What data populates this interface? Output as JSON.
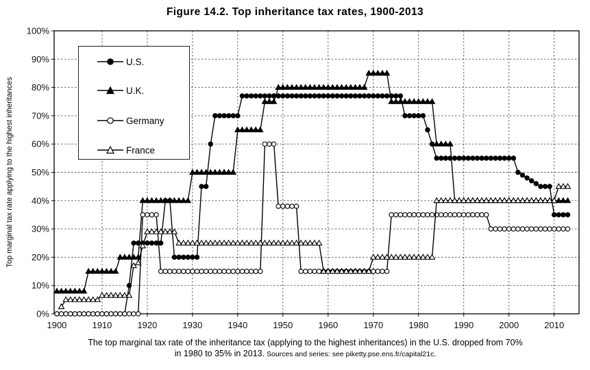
{
  "chart_data": {
    "type": "line",
    "title": "Figure 14.2. Top inheritance tax rates, 1900-2013",
    "ylabel": "Top marginal tax rate applying to the highest inheritances",
    "xlabel": "",
    "x_range": [
      1899.4,
      2015.5
    ],
    "y_range": [
      0,
      100
    ],
    "x_ticks": [
      1900,
      1910,
      1920,
      1930,
      1940,
      1950,
      1960,
      1970,
      1980,
      1990,
      2000,
      2010
    ],
    "x_tick_labels": [
      "1900",
      "1910",
      "1920",
      "1930",
      "1940",
      "1950",
      "1960",
      "1970",
      "1980",
      "1990",
      "2000",
      "2010"
    ],
    "y_ticks": [
      0,
      10,
      20,
      30,
      40,
      50,
      60,
      70,
      80,
      90,
      100
    ],
    "y_tick_labels": [
      "0%",
      "10%",
      "20%",
      "30%",
      "40%",
      "50%",
      "60%",
      "70%",
      "80%",
      "90%",
      "100%"
    ],
    "grid": "dashed-both-axes",
    "legend_position": "top-left",
    "colors": {
      "line": "#000000",
      "grid": "#555555",
      "background": "#ffffff"
    },
    "series": [
      {
        "name": "U.S.",
        "marker": "circle",
        "fill": "filled",
        "segments": [
          [
            1900,
            1915,
            0
          ],
          [
            1916,
            1916,
            10
          ],
          [
            1917,
            1923,
            25
          ],
          [
            1924,
            1925,
            40
          ],
          [
            1926,
            1931,
            20
          ],
          [
            1932,
            1933,
            45
          ],
          [
            1934,
            1934,
            60
          ],
          [
            1935,
            1940,
            70
          ],
          [
            1941,
            1976,
            77
          ],
          [
            1977,
            1981,
            70
          ],
          [
            1982,
            1982,
            65
          ],
          [
            1983,
            1983,
            60
          ],
          [
            1984,
            2001,
            55
          ],
          [
            2002,
            2002,
            50
          ],
          [
            2003,
            2003,
            49
          ],
          [
            2004,
            2004,
            48
          ],
          [
            2005,
            2005,
            47
          ],
          [
            2006,
            2006,
            46
          ],
          [
            2007,
            2009,
            45
          ],
          [
            2010,
            2013,
            35
          ]
        ]
      },
      {
        "name": "U.K.",
        "marker": "triangle",
        "fill": "filled",
        "segments": [
          [
            1900,
            1906,
            8
          ],
          [
            1907,
            1913,
            15
          ],
          [
            1914,
            1918,
            20
          ],
          [
            1919,
            1929,
            40
          ],
          [
            1930,
            1939,
            50
          ],
          [
            1940,
            1945,
            65
          ],
          [
            1946,
            1948,
            75
          ],
          [
            1949,
            1968,
            80
          ],
          [
            1969,
            1973,
            85
          ],
          [
            1974,
            1983,
            75
          ],
          [
            1984,
            1987,
            60
          ],
          [
            1988,
            2013,
            40
          ]
        ]
      },
      {
        "name": "Germany",
        "marker": "circle",
        "fill": "open",
        "segments": [
          [
            1900,
            1918,
            0
          ],
          [
            1919,
            1922,
            35
          ],
          [
            1923,
            1945,
            15
          ],
          [
            1946,
            1948,
            60
          ],
          [
            1949,
            1953,
            38
          ],
          [
            1954,
            1973,
            15
          ],
          [
            1974,
            1995,
            35
          ],
          [
            1996,
            2013,
            30
          ]
        ]
      },
      {
        "name": "France",
        "marker": "triangle",
        "fill": "open",
        "segments": [
          [
            1901,
            1901,
            2.5
          ],
          [
            1902,
            1909,
            5
          ],
          [
            1910,
            1916,
            6.5
          ],
          [
            1917,
            1917,
            17
          ],
          [
            1918,
            1918,
            18
          ],
          [
            1919,
            1919,
            24
          ],
          [
            1920,
            1926,
            29
          ],
          [
            1927,
            1958,
            25
          ],
          [
            1959,
            1969,
            15
          ],
          [
            1970,
            1983,
            20
          ],
          [
            1984,
            2010,
            40
          ],
          [
            2011,
            2013,
            45
          ]
        ]
      }
    ]
  },
  "caption": {
    "line1": "The top marginal tax rate of the inheritance tax (applying to the highest inheritances) in the U.S. dropped from 70%",
    "line2": "in 1980 to 35% in 2013.",
    "source": " Sources and series: see piketty.pse.ens.fr/capital21c."
  }
}
